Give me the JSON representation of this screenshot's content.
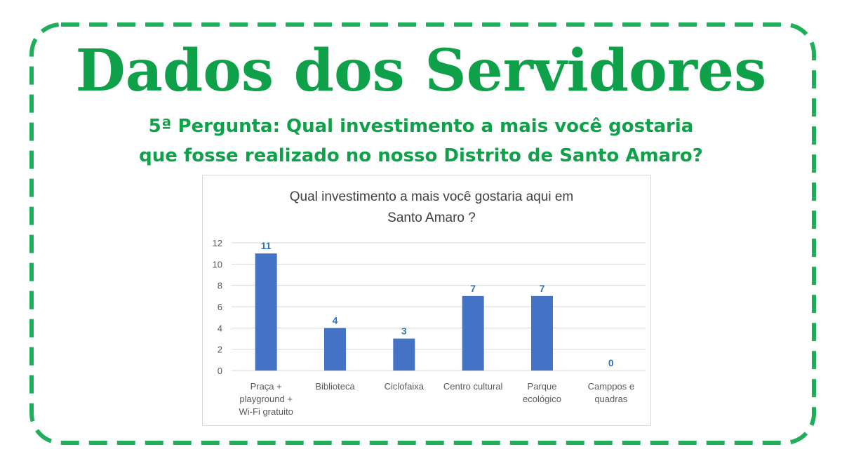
{
  "header": {
    "title": "Dados dos Servidores",
    "subtitle_line1": "5ª Pergunta: Qual investimento a mais você gostaria",
    "subtitle_line2": "que fosse realizado no nosso Distrito de Santo Amaro?"
  },
  "colors": {
    "accent": "#0fa14a",
    "dashed_border": "#1fae5a",
    "bar": "#4472c4",
    "data_label": "#2e75b6",
    "gridline": "#d9d9d9",
    "axis_text": "#595959",
    "title_text": "#404040"
  },
  "chart_data": {
    "type": "bar",
    "title_lines": [
      "Qual investimento a mais você gostaria aqui em",
      "Santo Amaro ?"
    ],
    "categories": [
      [
        "Praça +",
        "playground +",
        "Wi-Fi gratuito"
      ],
      [
        "Biblioteca"
      ],
      [
        "Ciclofaixa"
      ],
      [
        "Centro cultural"
      ],
      [
        "Parque",
        "ecológico"
      ],
      [
        "Camppos e",
        "quadras"
      ]
    ],
    "values": [
      11,
      4,
      3,
      7,
      7,
      0
    ],
    "data_labels": [
      "11",
      "4",
      "3",
      "7",
      "7",
      "0"
    ],
    "ylim": [
      0,
      12
    ],
    "yticks": [
      0,
      2,
      4,
      6,
      8,
      10,
      12
    ],
    "grid": true,
    "legend": "none"
  }
}
